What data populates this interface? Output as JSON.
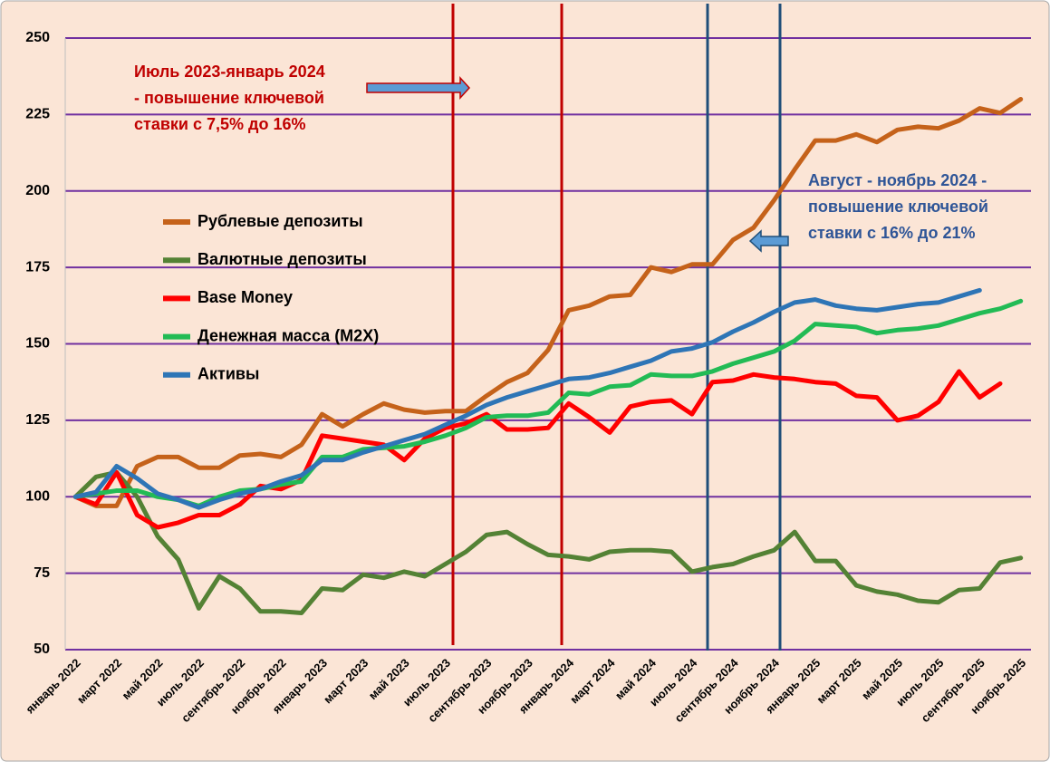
{
  "chart_data": {
    "type": "line",
    "categories": [
      "январь 2022",
      null,
      "март 2022",
      null,
      "май 2022",
      null,
      "июль 2022",
      null,
      "сентябрь 2022",
      null,
      "ноябрь 2022",
      null,
      "январь 2023",
      null,
      "март 2023",
      null,
      "май 2023",
      null,
      "июль 2023",
      null,
      "сентябрь 2023",
      null,
      "ноябрь 2023",
      null,
      "январь 2024",
      null,
      "март 2024",
      null,
      "май 2024",
      null,
      "июль 2024",
      null,
      "сентябрь 2024",
      null,
      "ноябрь 2024",
      null,
      "январь 2025",
      null,
      "март 2025",
      null,
      "май 2025",
      null,
      "июль 2025",
      null,
      "сентябрь 2025",
      null,
      "ноябрь 2025"
    ],
    "series": [
      {
        "name": "Рублевые депозиты",
        "color": "#c5621a",
        "values": [
          100,
          97,
          97,
          110,
          113,
          113,
          109.5,
          109.5,
          113.5,
          114,
          113,
          117,
          127,
          123,
          127,
          130.5,
          128.5,
          127.5,
          128,
          128,
          133,
          137.5,
          140.5,
          148,
          161,
          162.5,
          165.5,
          166,
          175,
          173.5,
          176,
          176,
          184,
          188,
          197,
          207,
          216.5,
          216.5,
          218.5,
          216,
          220,
          221,
          220.5,
          223,
          227,
          225.5,
          230
        ]
      },
      {
        "name": "Валютные депозиты",
        "color": "#548235",
        "values": [
          100,
          106.5,
          108,
          100,
          87,
          79.5,
          63.5,
          74,
          70,
          62.5,
          62.5,
          62,
          70,
          69.5,
          74.5,
          73.5,
          75.5,
          74,
          78,
          82,
          87.5,
          88.5,
          84.5,
          81,
          80.5,
          79.5,
          82,
          82.5,
          82.5,
          82,
          75.5,
          77,
          78,
          80.5,
          82.5,
          88.5,
          79,
          79,
          71,
          69,
          68,
          66,
          65.5,
          69.5,
          70,
          78.5,
          80
        ]
      },
      {
        "name": "Base Money",
        "color": "#ff0000",
        "values": [
          100,
          97.5,
          108,
          94,
          90,
          91.5,
          94,
          94,
          97.5,
          103.5,
          102.5,
          105.5,
          120,
          119,
          118,
          117,
          112,
          119,
          122.5,
          124,
          127,
          122,
          122,
          122.5,
          130.5,
          126,
          121,
          129.5,
          131,
          131.5,
          127,
          137.5,
          138,
          140,
          139,
          138.5,
          137.5,
          137,
          133,
          132.5,
          125,
          126.5,
          131,
          141,
          132.5,
          137,
          null
        ]
      },
      {
        "name": "Денежная масса (М2Х)",
        "color": "#22bb55",
        "values": [
          100,
          101,
          102,
          102,
          100,
          99,
          97,
          100,
          102,
          102.5,
          104,
          105,
          113,
          113,
          115.5,
          116,
          116.5,
          118,
          120,
          122.5,
          126,
          126.5,
          126.5,
          127.5,
          134,
          133.5,
          136,
          136.5,
          140,
          139.5,
          139.5,
          141,
          143.5,
          145.5,
          147.5,
          151,
          156.5,
          156,
          155.5,
          153.5,
          154.5,
          155,
          156,
          158,
          160,
          161.5,
          164
        ]
      },
      {
        "name": "Активы",
        "color": "#2e75b6",
        "values": [
          100,
          101.5,
          110,
          106,
          101,
          99,
          96.5,
          99,
          101,
          102.5,
          105,
          107,
          112,
          112,
          114.5,
          116.5,
          118.5,
          120.5,
          123.5,
          126.5,
          130,
          132.5,
          134.5,
          136.5,
          138.5,
          139,
          140.5,
          142.5,
          144.5,
          147.5,
          148.5,
          150.5,
          154,
          157,
          160.5,
          163.5,
          164.5,
          162.5,
          161.5,
          161,
          162,
          163,
          163.5,
          165.5,
          167.5,
          null,
          null
        ]
      }
    ],
    "ylim": [
      50,
      250
    ],
    "yticks": [
      50,
      75,
      100,
      125,
      150,
      175,
      200,
      225,
      250
    ],
    "grid": true,
    "annotations": [
      {
        "lines": [
          "Июль 2023-январь 2024",
          "- повышение ключевой",
          "ставки с 7,5% до 16%"
        ],
        "color": "#c00000"
      },
      {
        "lines": [
          "Август - ноябрь 2024 -",
          "повышение ключевой",
          "ставки с 16% до 21%"
        ],
        "color": "#2f5597"
      }
    ]
  }
}
